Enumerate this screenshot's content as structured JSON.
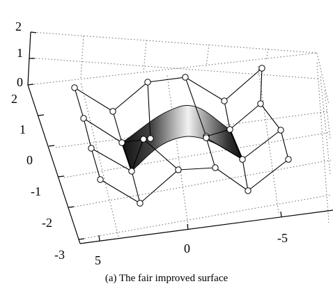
{
  "chart_data": {
    "type": "surface",
    "caption": "(a) The fair improved surface",
    "z_axis_ticks": [
      "2",
      "1",
      "0"
    ],
    "y_axis_ticks": [
      "2",
      "1",
      "0",
      "-1",
      "-2",
      "-3"
    ],
    "x_axis_ticks": [
      "5",
      "0",
      "-5"
    ],
    "grid": true,
    "control_net": {
      "description": "5x4 grid of control points (circles) joined by lines",
      "rows": 5,
      "cols": 4
    },
    "surface_shading": "grayscale gradient"
  },
  "colors": {
    "axis": "#000000",
    "grid": "#666666",
    "net": "#000000",
    "surface_dark": "#111111",
    "surface_light": "#f2f2f2"
  }
}
